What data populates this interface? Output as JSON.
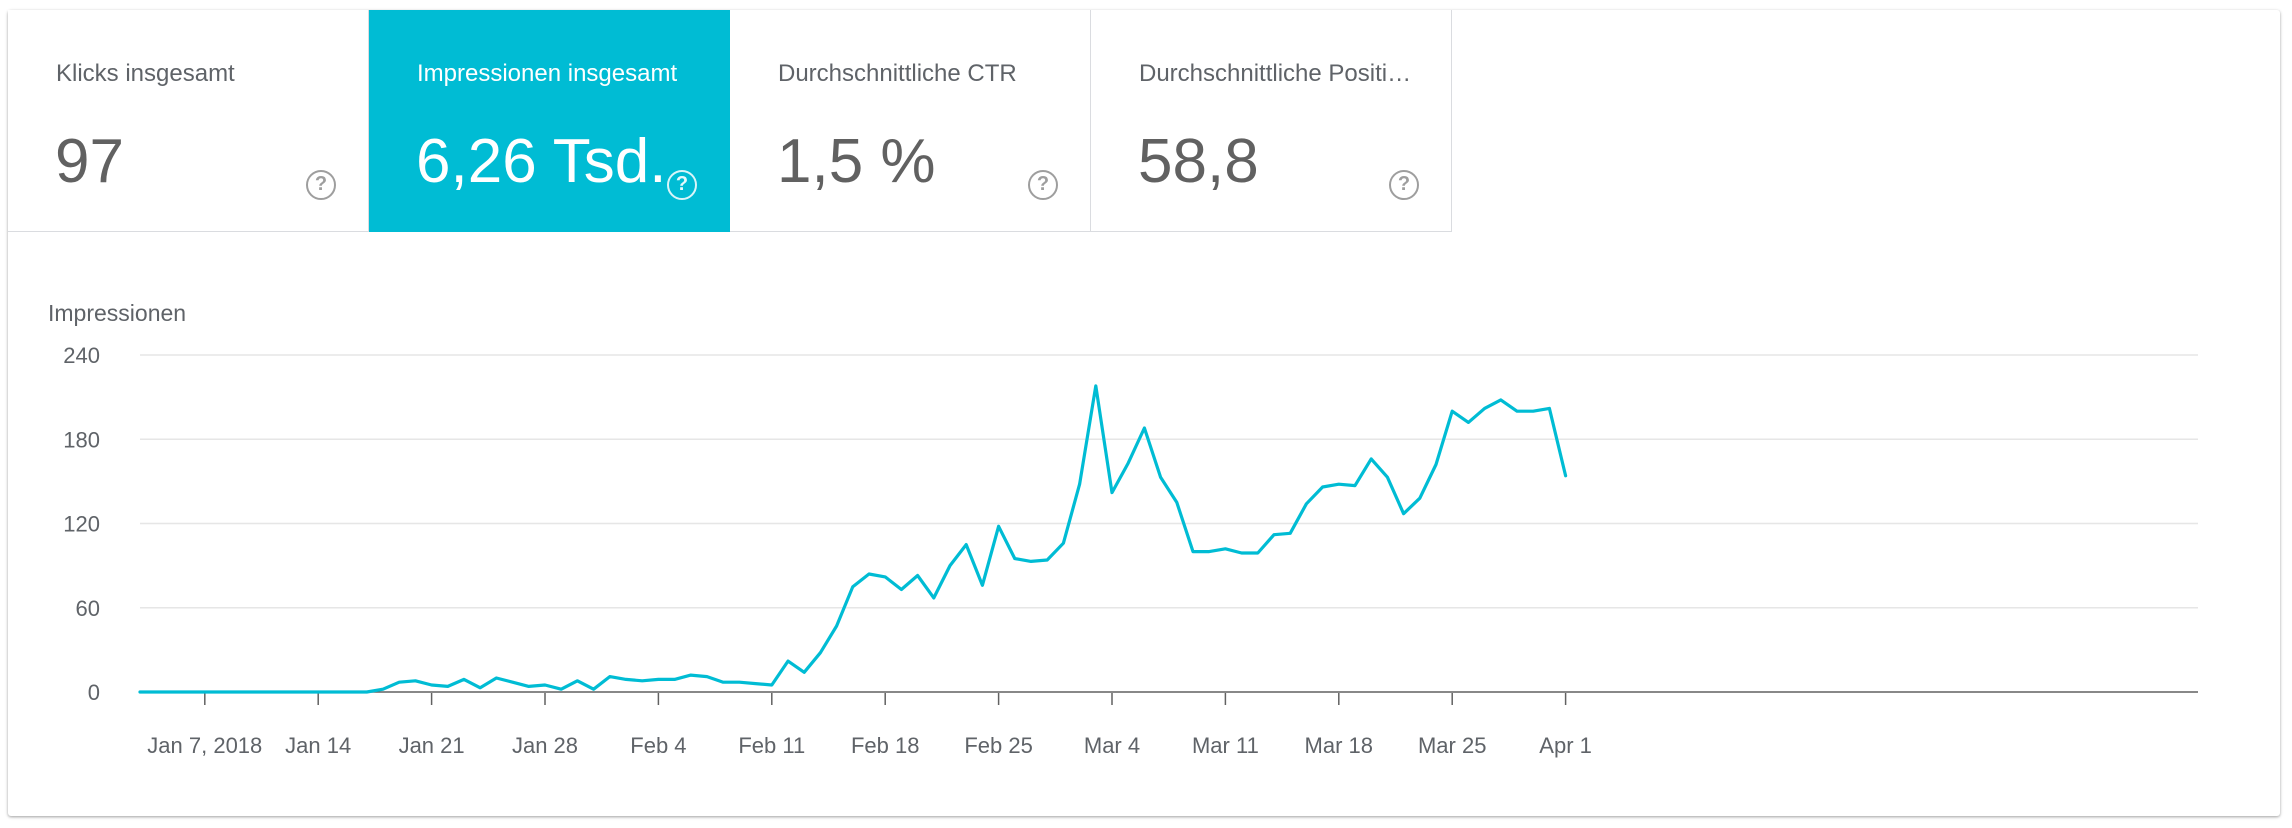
{
  "metrics": [
    {
      "label": "Klicks insgesamt",
      "value": "97",
      "active": false
    },
    {
      "label": "Impressionen insgesamt",
      "value": "6,26 Tsd.",
      "active": true
    },
    {
      "label": "Durchschnittliche CTR",
      "value": "1,5 %",
      "active": false
    },
    {
      "label": "Durchschnittliche Positi…",
      "value": "58,8",
      "active": false
    }
  ],
  "help_glyph": "?",
  "colors": {
    "accent": "#00bcd4",
    "line": "#00bcd4",
    "grid": "#e6e6e6",
    "axis": "#5f6368"
  },
  "chart_data": {
    "type": "line",
    "ylabel": "Impressionen",
    "ylim": [
      0,
      240
    ],
    "yticks": [
      0,
      60,
      120,
      180,
      240
    ],
    "xticks": [
      {
        "label": "Jan 7, 2018",
        "index": 4
      },
      {
        "label": "Jan 14",
        "index": 11
      },
      {
        "label": "Jan 21",
        "index": 18
      },
      {
        "label": "Jan 28",
        "index": 25
      },
      {
        "label": "Feb 4",
        "index": 32
      },
      {
        "label": "Feb 11",
        "index": 39
      },
      {
        "label": "Feb 18",
        "index": 46
      },
      {
        "label": "Feb 25",
        "index": 53
      },
      {
        "label": "Mar 4",
        "index": 60
      },
      {
        "label": "Mar 11",
        "index": 67
      },
      {
        "label": "Mar 18",
        "index": 74
      },
      {
        "label": "Mar 25",
        "index": 81
      },
      {
        "label": "Apr 1",
        "index": 88
      }
    ],
    "grid": true,
    "series": [
      {
        "name": "Impressionen",
        "values": [
          0,
          0,
          0,
          0,
          0,
          0,
          0,
          0,
          0,
          0,
          0,
          0,
          0,
          0,
          0,
          2,
          7,
          8,
          5,
          4,
          9,
          3,
          10,
          7,
          4,
          5,
          2,
          8,
          2,
          11,
          9,
          8,
          9,
          9,
          12,
          11,
          7,
          7,
          6,
          5,
          22,
          14,
          28,
          47,
          75,
          84,
          82,
          73,
          83,
          67,
          90,
          105,
          76,
          118,
          95,
          93,
          94,
          106,
          148,
          218,
          142,
          163,
          188,
          153,
          135,
          100,
          100,
          102,
          99,
          99,
          112,
          113,
          134,
          146,
          148,
          147,
          166,
          153,
          127,
          138,
          162,
          200,
          192,
          202,
          208,
          200,
          200,
          202,
          154
        ]
      }
    ]
  }
}
